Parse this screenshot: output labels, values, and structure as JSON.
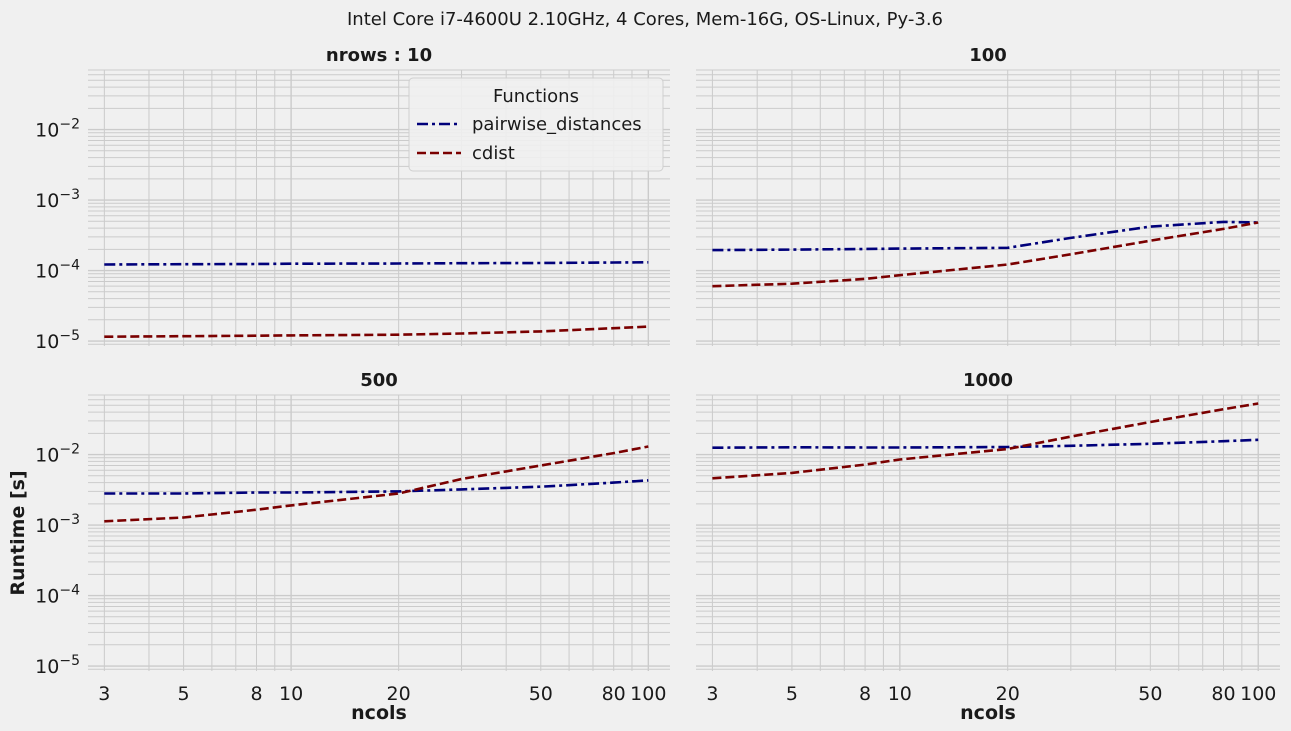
{
  "figure": {
    "suptitle": "Intel Core i7-4600U 2.10GHz, 4 Cores, Mem-16G, OS-Linux, Py-3.6",
    "ylabel": "Runtime [s]",
    "xlabel": "ncols"
  },
  "colors": {
    "pairwise_distances": "#00007a",
    "cdist": "#7a0000",
    "grid": "#cbcbcb",
    "background": "#f0f0f0"
  },
  "legend": {
    "title": "Functions",
    "location": "upper-right of first panel",
    "entries": [
      "pairwise_distances",
      "cdist"
    ]
  },
  "chart_data": [
    {
      "type": "line",
      "title": "nrows : 10",
      "xscale": "log",
      "yscale": "log",
      "xlim": [
        2.7,
        115
      ],
      "ylim": [
        8.5e-06,
        0.07
      ],
      "xticks": [
        "3",
        "5",
        "8",
        "10",
        "20",
        "50",
        "80",
        "100"
      ],
      "yticks": [
        "10^-5",
        "10^-4",
        "10^-3",
        "10^-2"
      ],
      "x": [
        3,
        5,
        8,
        10,
        20,
        30,
        50,
        80,
        100
      ],
      "series": [
        {
          "name": "pairwise_distances",
          "style": "dashdot",
          "values": [
            0.000122,
            0.000123,
            0.000124,
            0.000125,
            0.000126,
            0.000127,
            0.000128,
            0.00013,
            0.000131
          ]
        },
        {
          "name": "cdist",
          "style": "dashed",
          "values": [
            1.15e-05,
            1.17e-05,
            1.19e-05,
            1.2e-05,
            1.23e-05,
            1.28e-05,
            1.37e-05,
            1.52e-05,
            1.6e-05
          ]
        }
      ]
    },
    {
      "type": "line",
      "title": "100",
      "xscale": "log",
      "yscale": "log",
      "xlim": [
        2.7,
        115
      ],
      "ylim": [
        8.5e-06,
        0.07
      ],
      "xticks": [
        "3",
        "5",
        "8",
        "10",
        "20",
        "50",
        "80",
        "100"
      ],
      "yticks": [],
      "x": [
        3,
        5,
        8,
        10,
        20,
        30,
        50,
        80,
        100
      ],
      "series": [
        {
          "name": "pairwise_distances",
          "style": "dashdot",
          "values": [
            0.000195,
            0.000198,
            0.000202,
            0.000205,
            0.00021,
            0.00029,
            0.00042,
            0.00049,
            0.00048
          ]
        },
        {
          "name": "cdist",
          "style": "dashed",
          "values": [
            6e-05,
            6.5e-05,
            7.6e-05,
            8.6e-05,
            0.000122,
            0.00017,
            0.000265,
            0.00039,
            0.00048
          ]
        }
      ]
    },
    {
      "type": "line",
      "title": "500",
      "xscale": "log",
      "yscale": "log",
      "xlim": [
        2.7,
        115
      ],
      "ylim": [
        8.5e-06,
        0.07
      ],
      "xticks": [
        "3",
        "5",
        "8",
        "10",
        "20",
        "50",
        "80",
        "100"
      ],
      "yticks": [
        "10^-5",
        "10^-4",
        "10^-3",
        "10^-2"
      ],
      "x": [
        3,
        5,
        8,
        10,
        20,
        30,
        50,
        80,
        100
      ],
      "series": [
        {
          "name": "pairwise_distances",
          "style": "dashdot",
          "values": [
            0.0028,
            0.0028,
            0.0029,
            0.0029,
            0.003,
            0.0032,
            0.0035,
            0.004,
            0.0043
          ]
        },
        {
          "name": "cdist",
          "style": "dashed",
          "values": [
            0.00113,
            0.00128,
            0.00165,
            0.0019,
            0.0028,
            0.0045,
            0.007,
            0.0105,
            0.013
          ]
        }
      ]
    },
    {
      "type": "line",
      "title": "1000",
      "xscale": "log",
      "yscale": "log",
      "xlim": [
        2.7,
        115
      ],
      "ylim": [
        8.5e-06,
        0.07
      ],
      "xticks": [
        "3",
        "5",
        "8",
        "10",
        "20",
        "50",
        "80",
        "100"
      ],
      "yticks": [],
      "x": [
        3,
        5,
        8,
        10,
        20,
        30,
        50,
        80,
        100
      ],
      "series": [
        {
          "name": "pairwise_distances",
          "style": "dashdot",
          "values": [
            0.0125,
            0.0127,
            0.0126,
            0.0126,
            0.0128,
            0.0133,
            0.0142,
            0.0155,
            0.0162
          ]
        },
        {
          "name": "cdist",
          "style": "dashed",
          "values": [
            0.0046,
            0.0055,
            0.0072,
            0.0085,
            0.012,
            0.018,
            0.029,
            0.044,
            0.053
          ]
        }
      ]
    }
  ]
}
